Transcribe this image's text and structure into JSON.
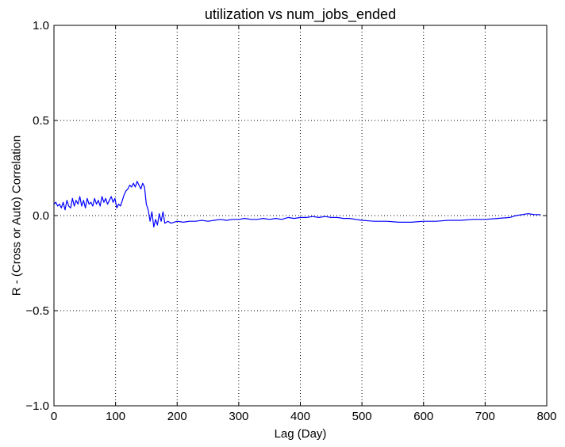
{
  "chart_data": {
    "type": "line",
    "title": "utilization vs num_jobs_ended",
    "xlabel": "Lag (Day)",
    "ylabel": "R - (Cross or Auto) Correlation",
    "xlim": [
      0,
      800
    ],
    "ylim": [
      -1.0,
      1.0
    ],
    "grid": true,
    "x_ticks": [
      0,
      100,
      200,
      300,
      400,
      500,
      600,
      700,
      800
    ],
    "y_ticks": [
      -1.0,
      -0.5,
      0.0,
      0.5,
      1.0
    ],
    "x_tick_labels": [
      "0",
      "100",
      "200",
      "300",
      "400",
      "500",
      "600",
      "700",
      "800"
    ],
    "y_tick_labels": [
      "−1.0",
      "−0.5",
      "0.0",
      "0.5",
      "1.0"
    ],
    "series": [
      {
        "color": "#0000ff",
        "x": [
          0,
          3,
          6,
          9,
          12,
          15,
          18,
          21,
          24,
          27,
          30,
          33,
          36,
          39,
          42,
          45,
          48,
          51,
          54,
          57,
          60,
          63,
          66,
          69,
          72,
          75,
          78,
          81,
          84,
          87,
          90,
          93,
          96,
          99,
          102,
          105,
          108,
          111,
          114,
          117,
          120,
          123,
          126,
          129,
          132,
          135,
          138,
          141,
          144,
          147,
          150,
          153,
          156,
          159,
          162,
          165,
          168,
          171,
          174,
          177,
          180,
          185,
          190,
          200,
          210,
          220,
          230,
          240,
          250,
          260,
          270,
          280,
          290,
          300,
          310,
          320,
          330,
          340,
          350,
          360,
          370,
          380,
          390,
          400,
          410,
          420,
          430,
          440,
          450,
          460,
          470,
          480,
          490,
          500,
          520,
          540,
          560,
          580,
          600,
          620,
          640,
          660,
          680,
          700,
          720,
          740,
          750,
          760,
          770,
          780,
          790
        ],
        "y": [
          0.06,
          0.07,
          0.05,
          0.06,
          0.04,
          0.07,
          0.03,
          0.08,
          0.05,
          0.04,
          0.09,
          0.05,
          0.08,
          0.06,
          0.1,
          0.05,
          0.08,
          0.04,
          0.09,
          0.06,
          0.07,
          0.05,
          0.09,
          0.06,
          0.08,
          0.05,
          0.1,
          0.07,
          0.09,
          0.06,
          0.08,
          0.1,
          0.07,
          0.09,
          0.04,
          0.06,
          0.05,
          0.08,
          0.11,
          0.13,
          0.14,
          0.16,
          0.15,
          0.17,
          0.15,
          0.18,
          0.16,
          0.14,
          0.17,
          0.15,
          0.06,
          0.03,
          -0.03,
          0.02,
          -0.06,
          -0.02,
          -0.05,
          0.01,
          -0.03,
          0.02,
          -0.04,
          -0.03,
          -0.04,
          -0.03,
          -0.035,
          -0.03,
          -0.03,
          -0.025,
          -0.03,
          -0.025,
          -0.02,
          -0.025,
          -0.02,
          -0.02,
          -0.015,
          -0.02,
          -0.02,
          -0.015,
          -0.02,
          -0.015,
          -0.02,
          -0.01,
          -0.015,
          -0.01,
          -0.01,
          -0.005,
          -0.01,
          -0.005,
          -0.01,
          -0.01,
          -0.015,
          -0.015,
          -0.02,
          -0.025,
          -0.03,
          -0.03,
          -0.035,
          -0.035,
          -0.03,
          -0.03,
          -0.025,
          -0.025,
          -0.02,
          -0.02,
          -0.015,
          -0.01,
          0.0,
          0.005,
          0.01,
          0.005,
          0.005
        ]
      }
    ]
  }
}
